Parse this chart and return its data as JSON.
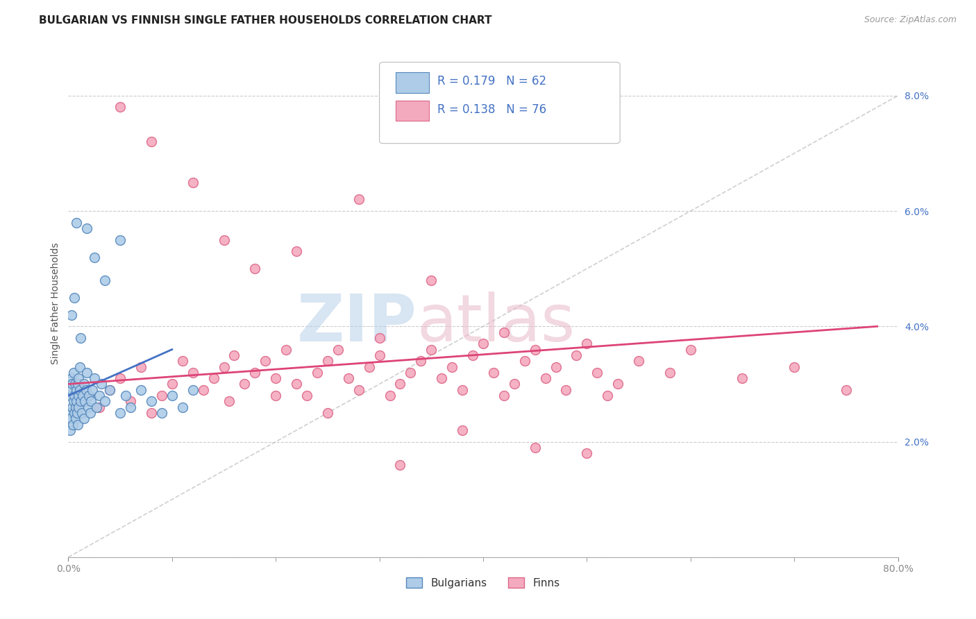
{
  "title": "BULGARIAN VS FINNISH SINGLE FATHER HOUSEHOLDS CORRELATION CHART",
  "source": "Source: ZipAtlas.com",
  "ylabel": "Single Father Households",
  "xlim": [
    0,
    80
  ],
  "ylim": [
    0,
    8.8
  ],
  "bulgarian_color": "#AECCE8",
  "finn_color": "#F4AABE",
  "bulgarian_edge": "#5588BB",
  "finn_edge": "#DD6688",
  "regression_blue": "#4472C4",
  "regression_pink": "#DD4477",
  "diag_color": "#BBBBBB",
  "legend_r_bulgarian": "R = 0.179",
  "legend_n_bulgarian": "N = 62",
  "legend_r_finn": "R = 0.138",
  "legend_n_finn": "N = 76",
  "watermark_zip": "ZIP",
  "watermark_atlas": "atlas",
  "title_fontsize": 11,
  "label_fontsize": 10,
  "tick_fontsize": 10,
  "marker_size": 100,
  "bulgarians_x": [
    0.1,
    0.15,
    0.2,
    0.25,
    0.3,
    0.3,
    0.35,
    0.4,
    0.45,
    0.5,
    0.5,
    0.55,
    0.6,
    0.65,
    0.7,
    0.7,
    0.75,
    0.8,
    0.85,
    0.9,
    0.9,
    0.95,
    1.0,
    1.0,
    1.1,
    1.1,
    1.2,
    1.3,
    1.4,
    1.5,
    1.5,
    1.6,
    1.7,
    1.8,
    1.9,
    2.0,
    2.1,
    2.2,
    2.3,
    2.5,
    2.7,
    3.0,
    3.2,
    3.5,
    4.0,
    5.0,
    5.5,
    6.0,
    7.0,
    8.0,
    9.0,
    10.0,
    11.0,
    12.0,
    1.8,
    2.5,
    3.5,
    5.0,
    0.3,
    0.6,
    0.8,
    1.2
  ],
  "bulgarians_y": [
    2.5,
    2.2,
    2.8,
    2.4,
    2.9,
    3.1,
    3.0,
    2.6,
    2.3,
    2.7,
    3.2,
    2.5,
    2.8,
    3.0,
    2.4,
    2.6,
    2.9,
    2.7,
    2.5,
    3.0,
    2.3,
    2.8,
    3.1,
    2.6,
    2.9,
    3.3,
    2.7,
    2.5,
    2.8,
    3.0,
    2.4,
    2.7,
    2.9,
    3.2,
    2.6,
    2.8,
    2.5,
    2.7,
    2.9,
    3.1,
    2.6,
    2.8,
    3.0,
    2.7,
    2.9,
    2.5,
    2.8,
    2.6,
    2.9,
    2.7,
    2.5,
    2.8,
    2.6,
    2.9,
    5.7,
    5.2,
    4.8,
    5.5,
    4.2,
    4.5,
    5.8,
    3.8
  ],
  "finns_x": [
    1.0,
    2.0,
    3.0,
    4.0,
    5.0,
    6.0,
    7.0,
    8.0,
    9.0,
    10.0,
    11.0,
    12.0,
    13.0,
    14.0,
    15.0,
    15.5,
    16.0,
    17.0,
    18.0,
    19.0,
    20.0,
    21.0,
    22.0,
    23.0,
    24.0,
    25.0,
    26.0,
    27.0,
    28.0,
    29.0,
    30.0,
    31.0,
    32.0,
    33.0,
    34.0,
    35.0,
    36.0,
    37.0,
    38.0,
    39.0,
    40.0,
    41.0,
    42.0,
    43.0,
    44.0,
    45.0,
    46.0,
    47.0,
    48.0,
    49.0,
    50.0,
    51.0,
    52.0,
    53.0,
    55.0,
    58.0,
    60.0,
    65.0,
    70.0,
    75.0,
    5.0,
    8.0,
    12.0,
    18.0,
    22.0,
    28.0,
    35.0,
    42.0,
    50.0,
    38.0,
    25.0,
    32.0,
    15.0,
    20.0,
    45.0,
    30.0
  ],
  "finns_y": [
    3.0,
    2.8,
    2.6,
    2.9,
    3.1,
    2.7,
    3.3,
    2.5,
    2.8,
    3.0,
    3.4,
    3.2,
    2.9,
    3.1,
    3.3,
    2.7,
    3.5,
    3.0,
    3.2,
    3.4,
    3.1,
    3.6,
    3.0,
    2.8,
    3.2,
    3.4,
    3.6,
    3.1,
    2.9,
    3.3,
    3.5,
    2.8,
    3.0,
    3.2,
    3.4,
    3.6,
    3.1,
    3.3,
    2.9,
    3.5,
    3.7,
    3.2,
    2.8,
    3.0,
    3.4,
    3.6,
    3.1,
    3.3,
    2.9,
    3.5,
    3.7,
    3.2,
    2.8,
    3.0,
    3.4,
    3.2,
    3.6,
    3.1,
    3.3,
    2.9,
    7.8,
    7.2,
    6.5,
    5.0,
    5.3,
    6.2,
    4.8,
    3.9,
    1.8,
    2.2,
    2.5,
    1.6,
    5.5,
    2.8,
    1.9,
    3.8
  ]
}
